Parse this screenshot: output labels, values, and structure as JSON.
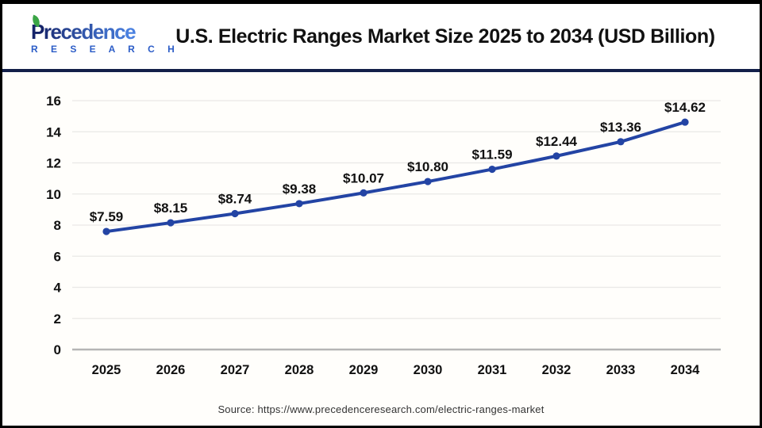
{
  "header": {
    "logo": {
      "line1": "Precedence",
      "line2": "R E S E A R C H",
      "gradient_start": "#15246a",
      "gradient_end": "#4a80e0",
      "research_color": "#2b5cc7",
      "leaf_color": "#3aa546"
    },
    "title": "U.S. Electric Ranges Market Size 2025 to 2034 (USD Billion)"
  },
  "chart_data": {
    "type": "line",
    "title": "U.S. Electric Ranges Market Size 2025 to 2034 (USD Billion)",
    "categories": [
      "2025",
      "2026",
      "2027",
      "2028",
      "2029",
      "2030",
      "2031",
      "2032",
      "2033",
      "2034"
    ],
    "values": [
      7.59,
      8.15,
      8.74,
      9.38,
      10.07,
      10.8,
      11.59,
      12.44,
      13.36,
      14.62
    ],
    "point_labels": [
      "$7.59",
      "$8.15",
      "$8.74",
      "$9.38",
      "$10.07",
      "$10.80",
      "$11.59",
      "$12.44",
      "$13.36",
      "$14.62"
    ],
    "ylim": [
      0,
      16
    ],
    "yticks": [
      0,
      2,
      4,
      6,
      8,
      10,
      12,
      14,
      16
    ],
    "grid": true,
    "legend_position": "none",
    "line_color": "#2344a4",
    "marker_color": "#2344a4",
    "grid_color": "#e9e8e6",
    "axis_line_color": "#b5b5b5",
    "tick_label_color": "#111111",
    "data_label_color": "#111111"
  },
  "footer": {
    "source": "Source: https://www.precedenceresearch.com/electric-ranges-market"
  }
}
